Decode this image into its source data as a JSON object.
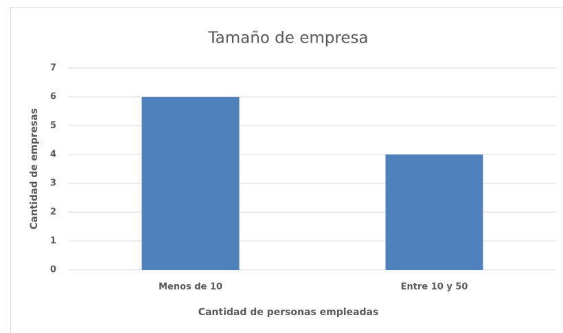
{
  "chart_data": {
    "type": "bar",
    "title": "Tamaño de empresa",
    "x_label": "Cantidad de personas empleadas",
    "y_label": "Cantidad de empresas",
    "categories": [
      "Menos de 10",
      "Entre 10 y 50"
    ],
    "values": [
      6,
      4
    ],
    "color": "#4f81bd",
    "ylim": [
      0,
      7
    ],
    "yticks": [
      0,
      1,
      2,
      3,
      4,
      5,
      6,
      7
    ],
    "grid": true
  }
}
